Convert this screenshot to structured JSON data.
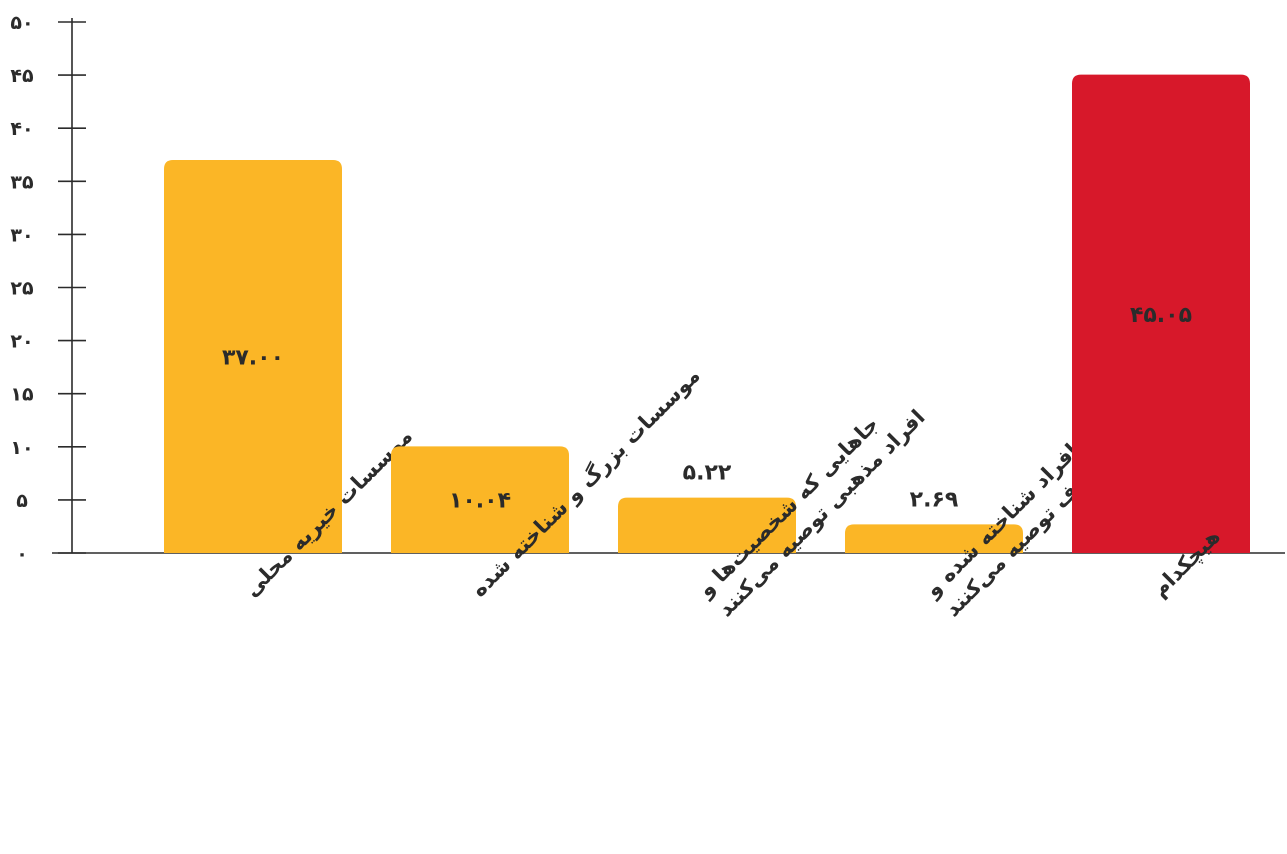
{
  "chart_data": {
    "type": "bar",
    "title": "",
    "xlabel": "",
    "ylabel": "",
    "ylim": [
      0,
      50
    ],
    "yticks": [
      0,
      5,
      10,
      15,
      20,
      25,
      30,
      35,
      40,
      45,
      50
    ],
    "ytick_labels": [
      "۰",
      "۵",
      "۱۰",
      "۱۵",
      "۲۰",
      "۲۵",
      "۳۰",
      "۳۵",
      "۴۰",
      "۴۵",
      "۵۰"
    ],
    "grid": false,
    "legend": "none",
    "categories": [
      [
        "موسسات خیریه محلی"
      ],
      [
        "موسسات بزرگ و شناخته شده"
      ],
      [
        "جاهایی که شخصیت‌ها و",
        "افراد مذهبی توصیه می‌کنند"
      ],
      [
        "جاهایی که افراد شناخته شده و",
        "معروف توصیه می‌کنند"
      ],
      [
        "هیچکدام"
      ]
    ],
    "values": [
      37.0,
      10.04,
      5.22,
      2.69,
      45.05
    ],
    "value_labels": [
      "۳۷.۰۰",
      "۱۰.۰۴",
      "۵.۲۲",
      "۲.۶۹",
      "۴۵.۰۵"
    ],
    "colors": [
      "#FBB626",
      "#FBB626",
      "#FBB626",
      "#FBB626",
      "#D7182A"
    ]
  }
}
